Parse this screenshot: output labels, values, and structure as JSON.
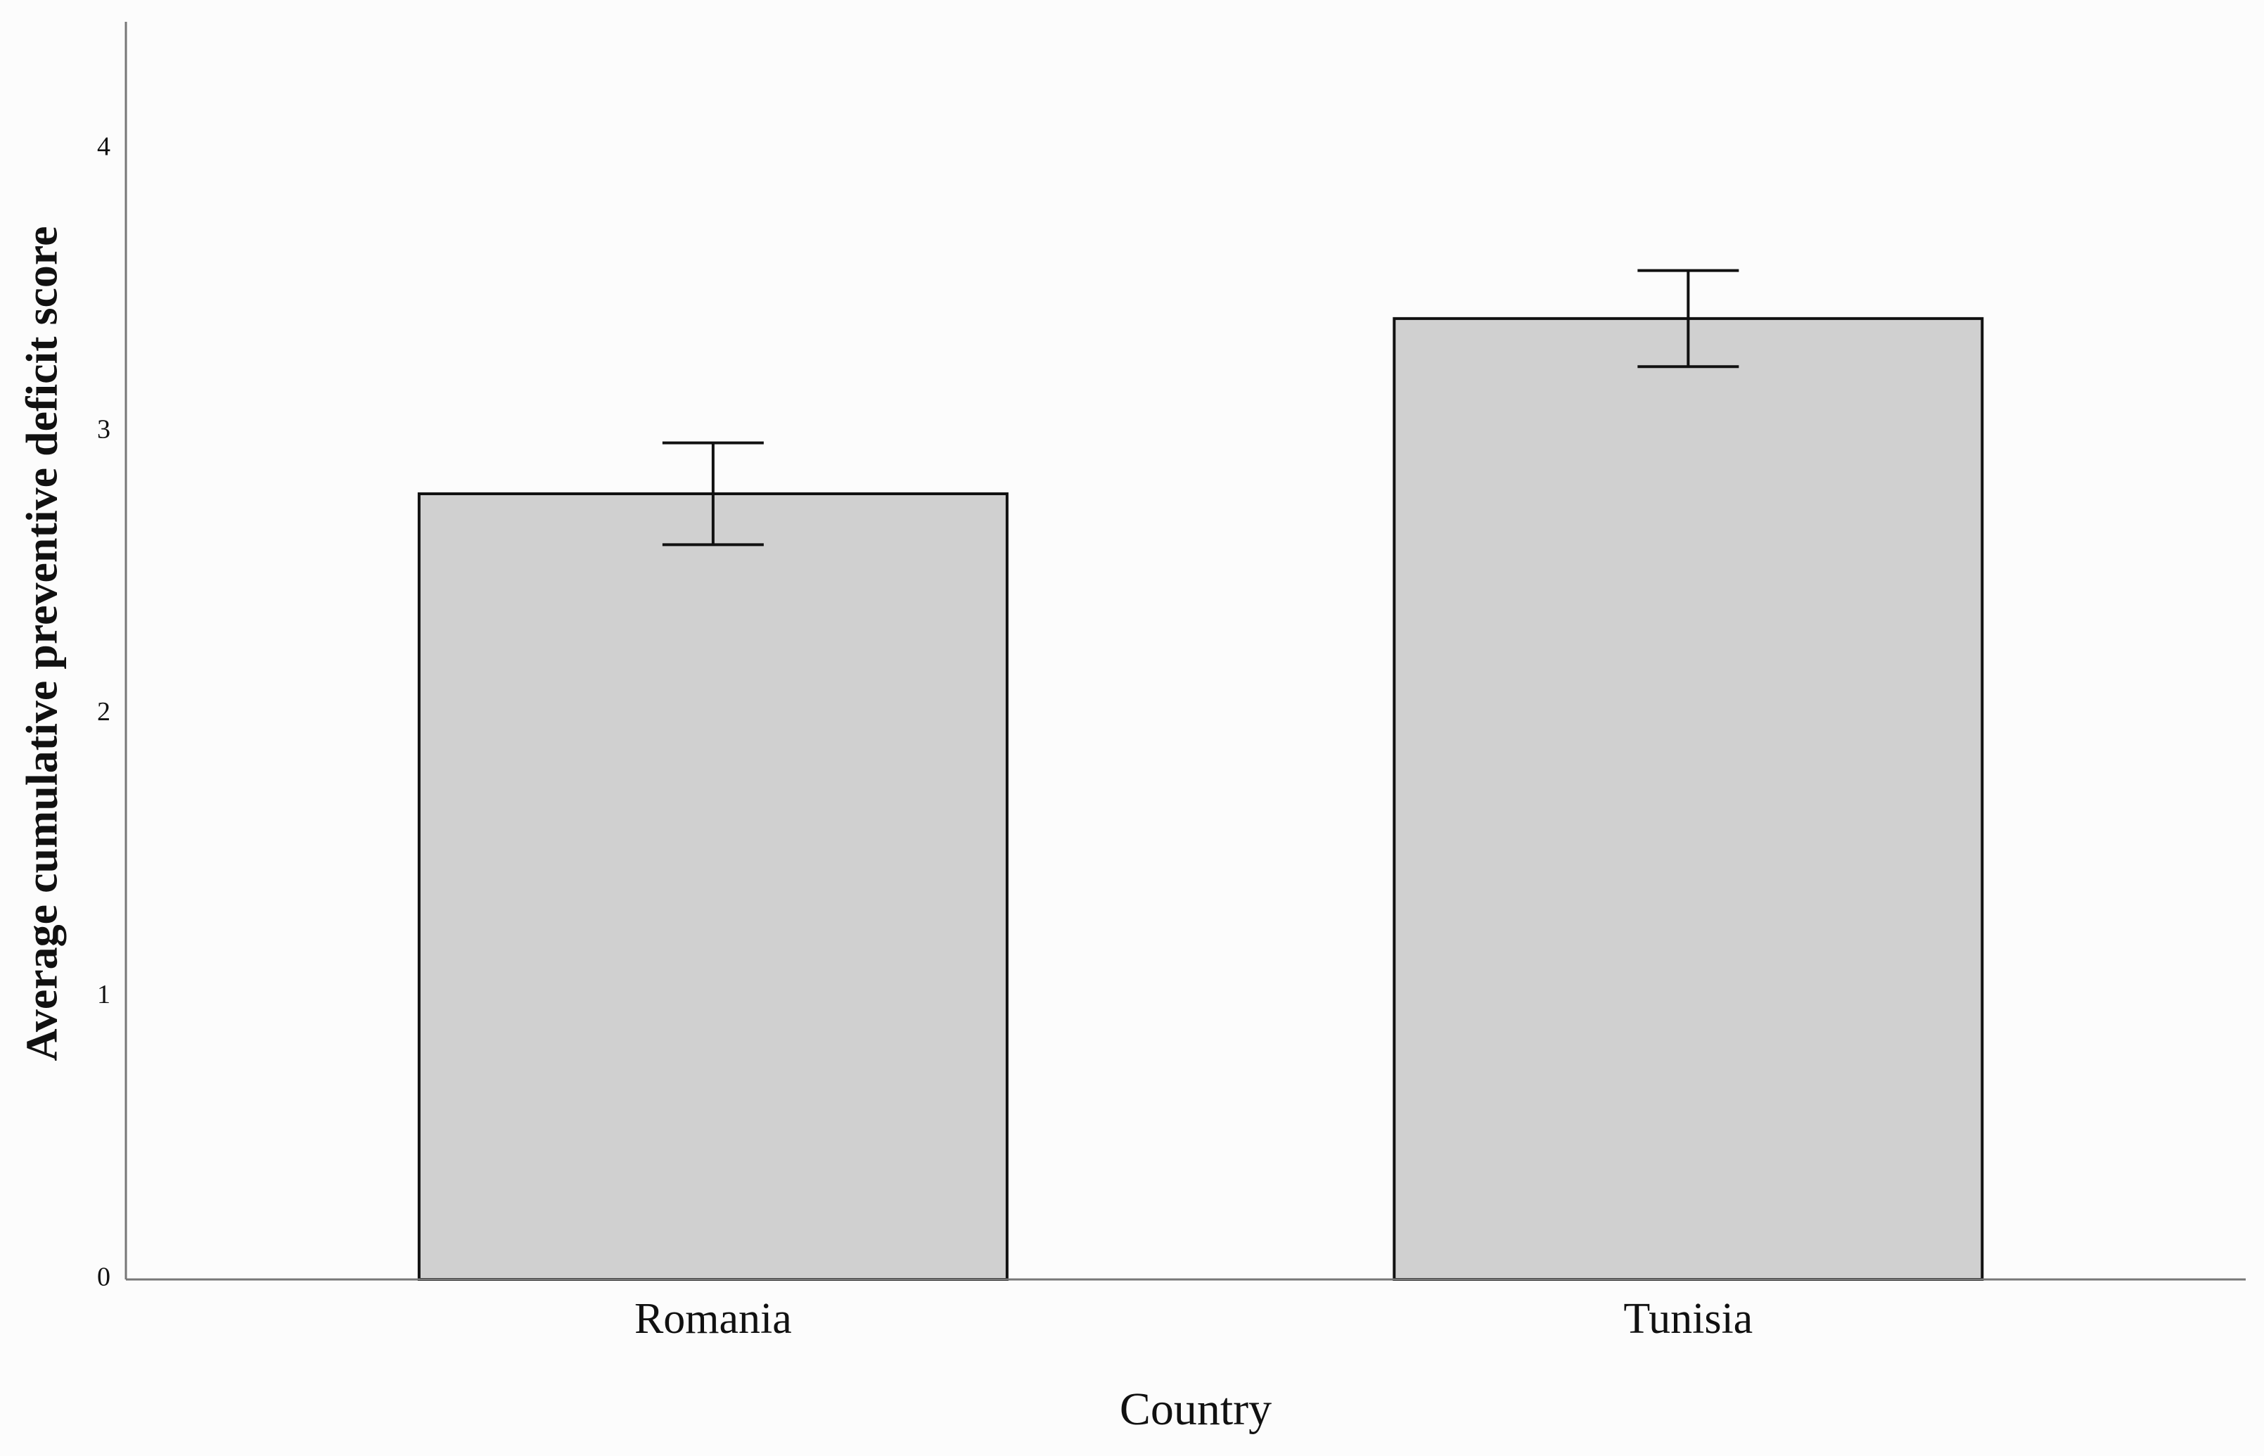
{
  "chart_data": {
    "type": "bar",
    "x_label": "Country",
    "y_label": "Average cumulative preventive deficit score",
    "categories": [
      "Romania",
      "Tunisia"
    ],
    "values": [
      2.78,
      3.4
    ],
    "errors": [
      0.18,
      0.17
    ],
    "color": "#d0d0d0",
    "ylim": [
      0,
      4.45
    ],
    "yticks": [
      0,
      1,
      2,
      3,
      4
    ]
  }
}
